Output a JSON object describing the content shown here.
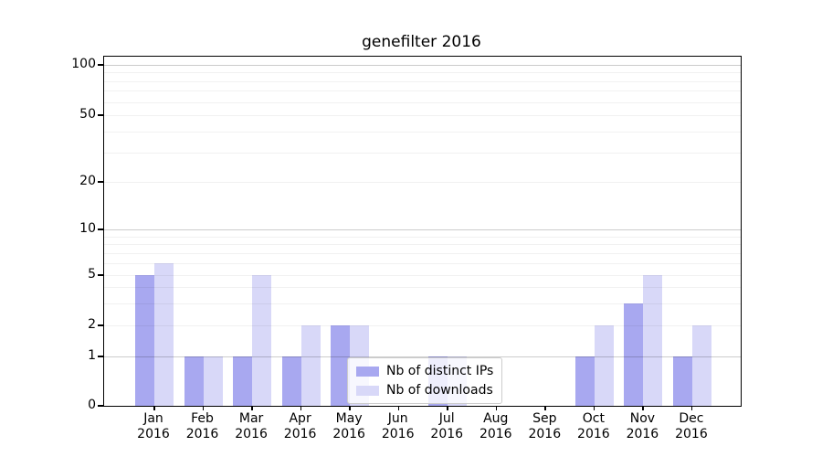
{
  "chart_data": {
    "type": "bar",
    "title": "genefilter 2016",
    "categories": [
      "Jan",
      "Feb",
      "Mar",
      "Apr",
      "May",
      "Jun",
      "Jul",
      "Aug",
      "Sep",
      "Oct",
      "Nov",
      "Dec"
    ],
    "year_label": "2016",
    "series": [
      {
        "name": "Nb of distinct IPs",
        "color": "#a8a8f0",
        "values": [
          5,
          1,
          1,
          1,
          2,
          0,
          1,
          0,
          0,
          1,
          3,
          1
        ]
      },
      {
        "name": "Nb of downloads",
        "color": "#d8d8f8",
        "values": [
          6,
          1,
          5,
          2,
          2,
          0,
          1,
          0,
          0,
          2,
          5,
          2
        ]
      }
    ],
    "yscale": "symlog",
    "y_ticks": [
      0,
      1,
      2,
      5,
      10,
      20,
      50,
      100
    ],
    "y_minor_gridlines": [
      2,
      3,
      4,
      5,
      6,
      7,
      8,
      9,
      20,
      30,
      40,
      50,
      60,
      70,
      80,
      90
    ],
    "y_major_gridlines": [
      1,
      10,
      100
    ],
    "ylim": [
      0,
      117
    ],
    "grid": "both",
    "legend_position": "lower center",
    "colors": {
      "spine": "#000000",
      "legend_border": "#cccccc",
      "grid_minor": "rgba(0,0,0,0.055)",
      "grid_major": "rgba(0,0,0,0.20)"
    }
  }
}
